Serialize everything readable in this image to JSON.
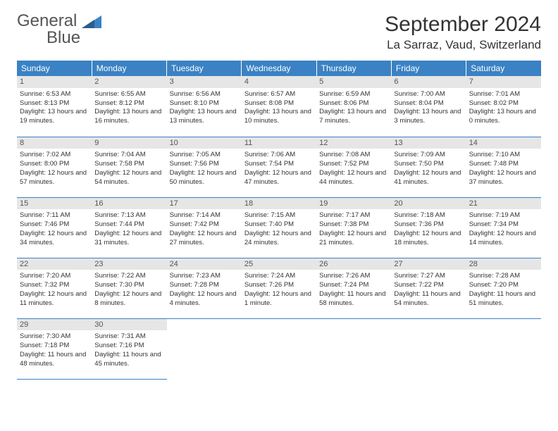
{
  "logo": {
    "word1": "General",
    "word2": "Blue"
  },
  "title": "September 2024",
  "location": "La Sarraz, Vaud, Switzerland",
  "colors": {
    "header_bg": "#3b82c4",
    "header_text": "#ffffff",
    "daynum_bg": "#e6e6e6",
    "border": "#3b82c4",
    "text": "#333333",
    "logo_gray": "#555555",
    "logo_blue": "#3b82c4"
  },
  "typography": {
    "title_fontsize": 30,
    "location_fontsize": 17,
    "dayheader_fontsize": 12,
    "cell_fontsize": 9.5
  },
  "day_headers": [
    "Sunday",
    "Monday",
    "Tuesday",
    "Wednesday",
    "Thursday",
    "Friday",
    "Saturday"
  ],
  "weeks": [
    [
      {
        "n": "1",
        "sr": "6:53 AM",
        "ss": "8:13 PM",
        "dl": "13 hours and 19 minutes."
      },
      {
        "n": "2",
        "sr": "6:55 AM",
        "ss": "8:12 PM",
        "dl": "13 hours and 16 minutes."
      },
      {
        "n": "3",
        "sr": "6:56 AM",
        "ss": "8:10 PM",
        "dl": "13 hours and 13 minutes."
      },
      {
        "n": "4",
        "sr": "6:57 AM",
        "ss": "8:08 PM",
        "dl": "13 hours and 10 minutes."
      },
      {
        "n": "5",
        "sr": "6:59 AM",
        "ss": "8:06 PM",
        "dl": "13 hours and 7 minutes."
      },
      {
        "n": "6",
        "sr": "7:00 AM",
        "ss": "8:04 PM",
        "dl": "13 hours and 3 minutes."
      },
      {
        "n": "7",
        "sr": "7:01 AM",
        "ss": "8:02 PM",
        "dl": "13 hours and 0 minutes."
      }
    ],
    [
      {
        "n": "8",
        "sr": "7:02 AM",
        "ss": "8:00 PM",
        "dl": "12 hours and 57 minutes."
      },
      {
        "n": "9",
        "sr": "7:04 AM",
        "ss": "7:58 PM",
        "dl": "12 hours and 54 minutes."
      },
      {
        "n": "10",
        "sr": "7:05 AM",
        "ss": "7:56 PM",
        "dl": "12 hours and 50 minutes."
      },
      {
        "n": "11",
        "sr": "7:06 AM",
        "ss": "7:54 PM",
        "dl": "12 hours and 47 minutes."
      },
      {
        "n": "12",
        "sr": "7:08 AM",
        "ss": "7:52 PM",
        "dl": "12 hours and 44 minutes."
      },
      {
        "n": "13",
        "sr": "7:09 AM",
        "ss": "7:50 PM",
        "dl": "12 hours and 41 minutes."
      },
      {
        "n": "14",
        "sr": "7:10 AM",
        "ss": "7:48 PM",
        "dl": "12 hours and 37 minutes."
      }
    ],
    [
      {
        "n": "15",
        "sr": "7:11 AM",
        "ss": "7:46 PM",
        "dl": "12 hours and 34 minutes."
      },
      {
        "n": "16",
        "sr": "7:13 AM",
        "ss": "7:44 PM",
        "dl": "12 hours and 31 minutes."
      },
      {
        "n": "17",
        "sr": "7:14 AM",
        "ss": "7:42 PM",
        "dl": "12 hours and 27 minutes."
      },
      {
        "n": "18",
        "sr": "7:15 AM",
        "ss": "7:40 PM",
        "dl": "12 hours and 24 minutes."
      },
      {
        "n": "19",
        "sr": "7:17 AM",
        "ss": "7:38 PM",
        "dl": "12 hours and 21 minutes."
      },
      {
        "n": "20",
        "sr": "7:18 AM",
        "ss": "7:36 PM",
        "dl": "12 hours and 18 minutes."
      },
      {
        "n": "21",
        "sr": "7:19 AM",
        "ss": "7:34 PM",
        "dl": "12 hours and 14 minutes."
      }
    ],
    [
      {
        "n": "22",
        "sr": "7:20 AM",
        "ss": "7:32 PM",
        "dl": "12 hours and 11 minutes."
      },
      {
        "n": "23",
        "sr": "7:22 AM",
        "ss": "7:30 PM",
        "dl": "12 hours and 8 minutes."
      },
      {
        "n": "24",
        "sr": "7:23 AM",
        "ss": "7:28 PM",
        "dl": "12 hours and 4 minutes."
      },
      {
        "n": "25",
        "sr": "7:24 AM",
        "ss": "7:26 PM",
        "dl": "12 hours and 1 minute."
      },
      {
        "n": "26",
        "sr": "7:26 AM",
        "ss": "7:24 PM",
        "dl": "11 hours and 58 minutes."
      },
      {
        "n": "27",
        "sr": "7:27 AM",
        "ss": "7:22 PM",
        "dl": "11 hours and 54 minutes."
      },
      {
        "n": "28",
        "sr": "7:28 AM",
        "ss": "7:20 PM",
        "dl": "11 hours and 51 minutes."
      }
    ],
    [
      {
        "n": "29",
        "sr": "7:30 AM",
        "ss": "7:18 PM",
        "dl": "11 hours and 48 minutes."
      },
      {
        "n": "30",
        "sr": "7:31 AM",
        "ss": "7:16 PM",
        "dl": "11 hours and 45 minutes."
      },
      null,
      null,
      null,
      null,
      null
    ]
  ],
  "labels": {
    "sunrise_prefix": "Sunrise: ",
    "sunset_prefix": "Sunset: ",
    "daylight_prefix": "Daylight: "
  }
}
